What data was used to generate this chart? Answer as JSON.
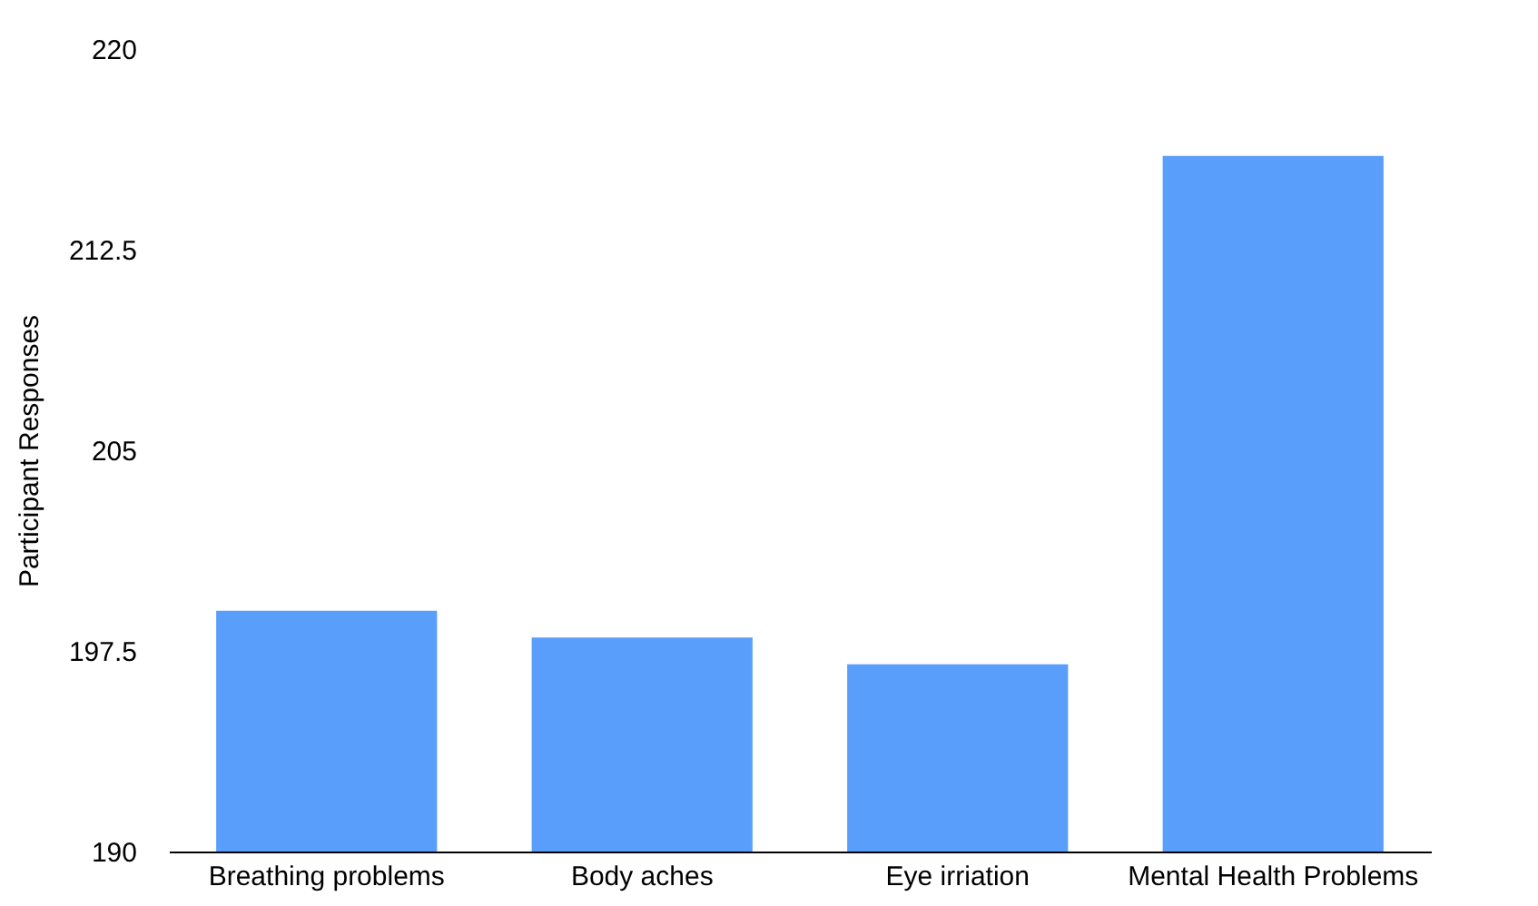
{
  "chart_data": {
    "type": "bar",
    "ylabel": "Participant Responses",
    "categories": [
      "Breathing problems",
      "Body aches",
      "Eye irriation",
      "Mental Health Problems"
    ],
    "values": [
      199,
      198,
      197,
      216
    ],
    "color": "#5a9efb",
    "ylim": [
      190,
      220
    ],
    "yticks": [
      190,
      197.5,
      205,
      212.5,
      220
    ],
    "grid": false
  }
}
